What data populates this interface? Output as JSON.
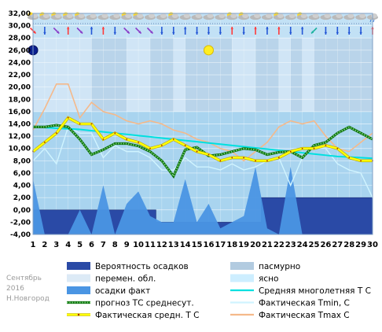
{
  "chart_data": {
    "type": "area",
    "month": "Сентябрь",
    "year": "2016",
    "city": "Н.Новгород",
    "ylim": [
      -4,
      32
    ],
    "y_ticks": [
      "-4,00",
      "-2,00",
      "0,00",
      "2,00",
      "4,00",
      "6,00",
      "8,00",
      "10,00",
      "12,00",
      "14,00",
      "16,00",
      "18,00",
      "20,00",
      "22,00",
      "24,00",
      "26,00",
      "28,00",
      "30,00",
      "32,00"
    ],
    "x": [
      1,
      2,
      3,
      4,
      5,
      6,
      7,
      8,
      9,
      10,
      11,
      12,
      13,
      14,
      15,
      16,
      17,
      18,
      19,
      20,
      21,
      22,
      23,
      24,
      25,
      26,
      27,
      28,
      29,
      30
    ],
    "grid": true,
    "background_colors": {
      "paper": "#ffffff",
      "plot_light": "#a9d4ef",
      "plot_upper": "#c2e1f5",
      "overcast": "#b2cbe0",
      "cloud": "#dceaf6",
      "clear": "#cdeeff"
    },
    "series": [
      {
        "name": "Вероятность осадков",
        "color": "#2a4aa6",
        "values": [
          0,
          0,
          0,
          0,
          0,
          0,
          0,
          0,
          0,
          0,
          0,
          -2,
          -2,
          -2,
          -2,
          -2,
          -2,
          -2,
          -2,
          -2,
          2,
          2,
          2,
          2,
          2,
          2,
          2,
          2,
          2,
          2
        ]
      },
      {
        "name": "осадки факт",
        "color": "#4a95e3",
        "values": [
          5,
          -4,
          -4,
          -4,
          0,
          -4,
          4,
          -4,
          1,
          3,
          -1,
          -2,
          -2,
          5,
          -2,
          1,
          -3,
          -2,
          -1,
          7,
          -3,
          -4,
          7,
          -4,
          -4,
          -4,
          -4,
          -4,
          -4,
          -4
        ]
      },
      {
        "name": "Средняя многолетняя Т С",
        "color": "#00e0e0",
        "values": [
          13.5,
          13.4,
          13.3,
          13.2,
          13.1,
          12.9,
          12.7,
          12.5,
          12.3,
          12.1,
          11.9,
          11.7,
          11.5,
          11.3,
          11.1,
          10.9,
          10.7,
          10.5,
          10.3,
          10.1,
          9.9,
          9.7,
          9.5,
          9.3,
          9.1,
          8.9,
          8.7,
          8.6,
          8.5,
          8.4
        ]
      },
      {
        "name": "прогноз ТС среднесут.",
        "color": "#0a6e0a",
        "values": [
          13.5,
          13.5,
          13.8,
          13.5,
          11.5,
          9.0,
          9.8,
          10.8,
          10.8,
          10.4,
          9.5,
          8.0,
          5.5,
          9.8,
          10.2,
          8.8,
          9.0,
          9.5,
          10.0,
          9.8,
          9.0,
          9.4,
          9.5,
          8.5,
          10.5,
          11.0,
          12.5,
          13.5,
          12.5,
          11.5
        ]
      },
      {
        "name": "Фактическая Tmin, С",
        "color": "#d0f4ff",
        "values": [
          8.0,
          10.0,
          7.5,
          13.5,
          12.5,
          12.5,
          8.5,
          10.5,
          9.5,
          9.5,
          8.5,
          6.5,
          6.5,
          8.5,
          7.0,
          7.0,
          6.5,
          7.5,
          6.5,
          7.0,
          8.0,
          8.5,
          4.0,
          8.5,
          10.5,
          10.0,
          7.5,
          6.5,
          6.0,
          2.0
        ]
      },
      {
        "name": "Фактическая средн. Т С",
        "color": "#ffff00",
        "values": [
          9.5,
          11.0,
          12.5,
          15.0,
          14.0,
          14.0,
          11.5,
          12.5,
          11.5,
          11.0,
          10.0,
          10.5,
          11.5,
          10.5,
          9.5,
          9.0,
          8.0,
          8.5,
          8.5,
          8.0,
          8.0,
          8.5,
          9.5,
          10.0,
          10.0,
          10.5,
          10.0,
          8.5,
          8.0,
          8.0
        ]
      },
      {
        "name": "Фактическая Tmax C",
        "color": "#f5b98a",
        "values": [
          13.0,
          16.5,
          20.5,
          20.5,
          15.0,
          17.5,
          16.0,
          15.5,
          14.5,
          14.0,
          14.5,
          14.0,
          13.0,
          12.5,
          11.5,
          11.0,
          10.0,
          9.5,
          8.0,
          9.5,
          11.0,
          13.5,
          14.5,
          14.0,
          14.5,
          12.0,
          10.0,
          9.5,
          11.0,
          12.5
        ]
      }
    ],
    "weather_icons": [
      "sun-cloud",
      "sun-cloud",
      "sun-cloud",
      "sun-cloud",
      "sun-cloud",
      "cloud",
      "cloud",
      "cloud",
      "sun-cloud",
      "sun-cloud",
      "cloud",
      "cloud",
      "sun-cloud",
      "cloud",
      "cloud",
      "cloud",
      "cloud",
      "sun-cloud",
      "sun-cloud",
      "cloud",
      "cloud",
      "sun-cloud",
      "cloud",
      "sun-cloud",
      "cloud",
      "cloud",
      "cloud",
      "cloud",
      "cloud",
      "rain-cloud"
    ],
    "wind_arrows": [
      {
        "dir": "down-right",
        "color": "#ff3b3b"
      },
      {
        "dir": "down",
        "color": "#2457d6"
      },
      {
        "dir": "down-right",
        "color": "#8a3fc8"
      },
      {
        "dir": "up",
        "color": "#ff3b3b"
      },
      {
        "dir": "down-right",
        "color": "#8a3fc8"
      },
      {
        "dir": "up",
        "color": "#2457d6"
      },
      {
        "dir": "up",
        "color": "#ff3b3b"
      },
      {
        "dir": "down",
        "color": "#2457d6"
      },
      {
        "dir": "down-right",
        "color": "#8a3fc8"
      },
      {
        "dir": "down-right",
        "color": "#8a3fc8"
      },
      {
        "dir": "down-right",
        "color": "#8a3fc8"
      },
      {
        "dir": "down",
        "color": "#2457d6"
      },
      {
        "dir": "down",
        "color": "#2457d6"
      },
      {
        "dir": "up",
        "color": "#2457d6"
      },
      {
        "dir": "down",
        "color": "#2457d6"
      },
      {
        "dir": "down",
        "color": "#2457d6"
      },
      {
        "dir": "down",
        "color": "#2457d6"
      },
      {
        "dir": "up",
        "color": "#ff3b3b"
      },
      {
        "dir": "down",
        "color": "#2457d6"
      },
      {
        "dir": "up",
        "color": "#ff3b3b"
      },
      {
        "dir": "up",
        "color": "#2457d6"
      },
      {
        "dir": "up",
        "color": "#ff3b3b"
      },
      {
        "dir": "down",
        "color": "#2457d6"
      },
      {
        "dir": "up",
        "color": "#2457d6"
      },
      {
        "dir": "down-left",
        "color": "#1fb3a0"
      },
      {
        "dir": "down",
        "color": "#2457d6"
      },
      {
        "dir": "down",
        "color": "#2457d6"
      },
      {
        "dir": "down",
        "color": "#2457d6"
      },
      {
        "dir": "down",
        "color": "#2457d6"
      },
      {
        "dir": "up",
        "color": "#ff3b3b"
      }
    ],
    "markers": [
      {
        "name": "moon",
        "day": 1,
        "value": 26.0,
        "color": "#0a1f8f"
      },
      {
        "name": "sun",
        "day": 16,
        "value": 26.0,
        "color": "#ffee22"
      }
    ],
    "legend": {
      "rows": [
        [
          {
            "key": "precip_prob",
            "label": "Вероятность осадков",
            "swatch": "#2a4aa6"
          },
          {
            "key": "overcast",
            "label": "пасмурно",
            "swatch": "#b2cbe0"
          }
        ],
        [
          {
            "key": "partly",
            "label": "перемен. обл.",
            "swatch": "#dceaf6"
          },
          {
            "key": "clear",
            "label": "ясно",
            "swatch": "#cdeeff"
          }
        ],
        [
          {
            "key": "precip_fact",
            "label": "осадки факт",
            "swatch": "#4a95e3"
          },
          {
            "key": "avg_norm",
            "label": "Средняя многолетняя Т С",
            "swatch": "#00e0e0"
          }
        ],
        [
          {
            "key": "forecast",
            "label": "прогноз ТС среднесут.",
            "swatch": "#0a6e0a"
          },
          {
            "key": "tmin",
            "label": "Фактическая Tmin, С",
            "swatch": "#d0f4ff"
          }
        ],
        [
          {
            "key": "tavg",
            "label": "Фактическая средн. Т С",
            "swatch": "#ffff00"
          },
          {
            "key": "tmax",
            "label": "Фактическая Tmax C",
            "swatch": "#f5b98a"
          }
        ]
      ]
    }
  }
}
